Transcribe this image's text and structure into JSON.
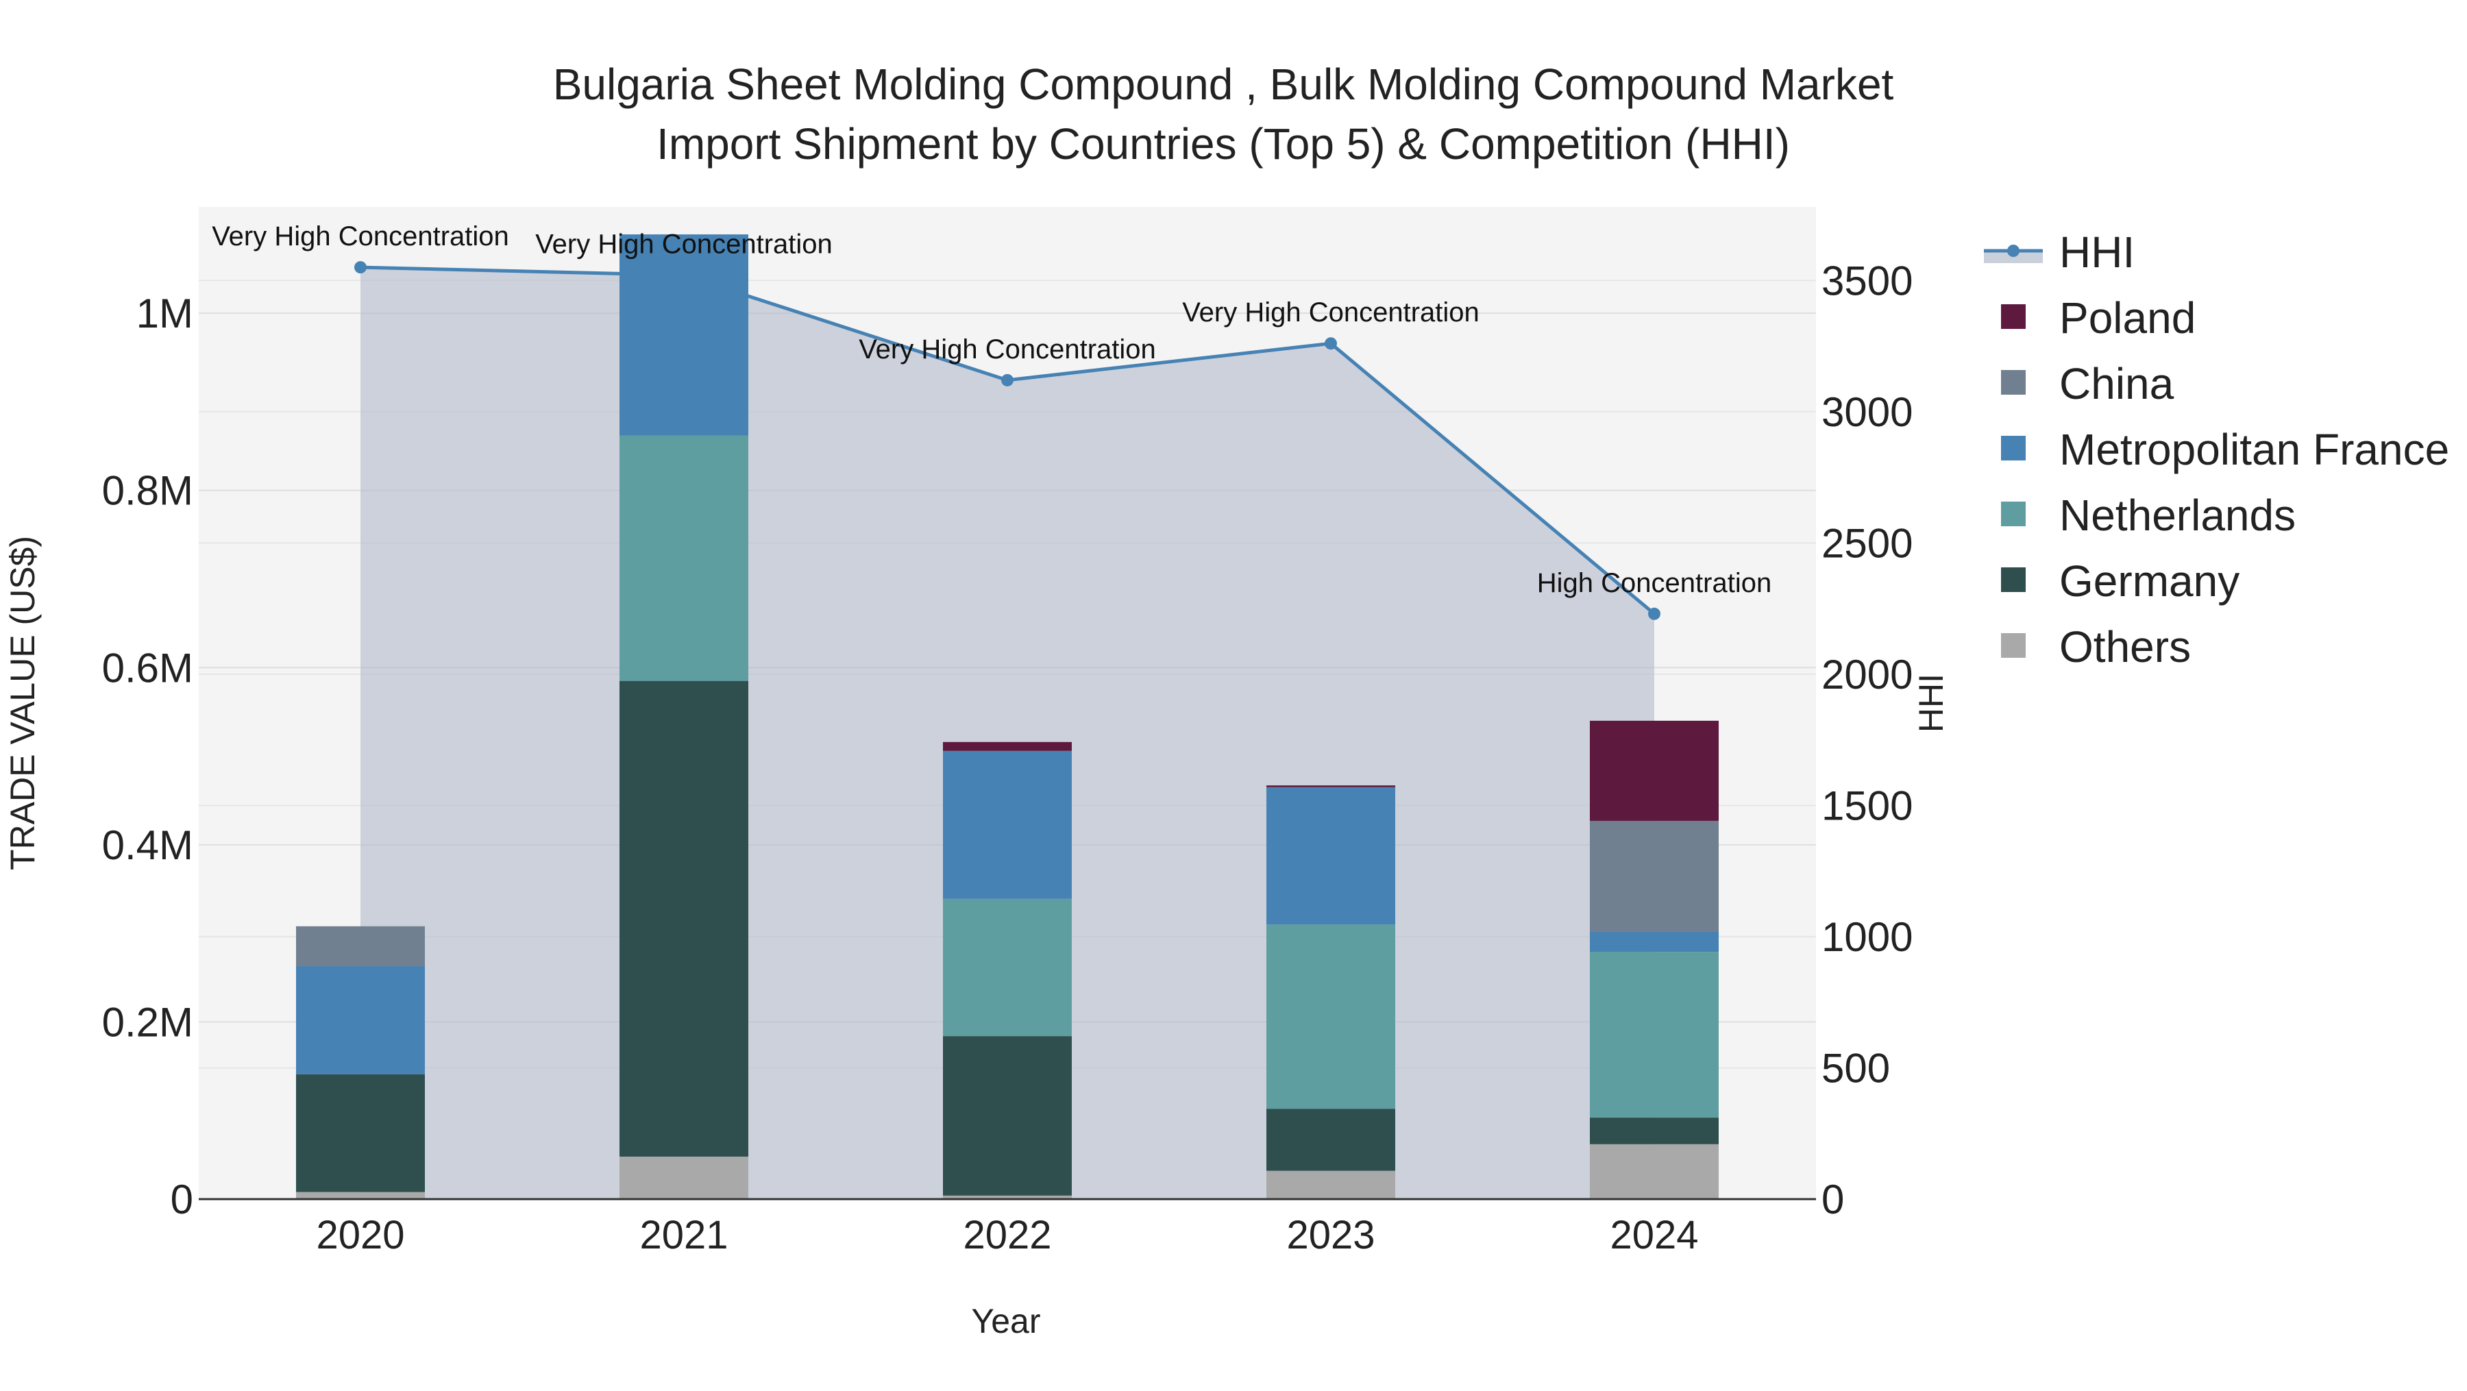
{
  "chart_data": {
    "type": "bar",
    "title_line1": "Bulgaria Sheet Molding Compound , Bulk Molding Compound Market",
    "title_line2": "Import Shipment by Countries (Top 5) & Competition (HHI)",
    "xlabel": "Year",
    "ylabel": "TRADE VALUE (US$)",
    "y2label": "HHI",
    "categories": [
      "2020",
      "2021",
      "2022",
      "2023",
      "2024"
    ],
    "ylim": [
      0,
      1120000
    ],
    "y2lim": [
      0,
      3780
    ],
    "y_ticks": [
      0,
      200000,
      400000,
      600000,
      800000,
      1000000
    ],
    "y_tick_labels": [
      "0",
      "0.2M",
      "0.4M",
      "0.6M",
      "0.8M",
      "1M"
    ],
    "y2_ticks": [
      0,
      500,
      1000,
      1500,
      2000,
      2500,
      3000,
      3500
    ],
    "y2_tick_labels": [
      "0",
      "500",
      "1000",
      "1500",
      "2000",
      "2500",
      "3000",
      "3500"
    ],
    "series": [
      {
        "name": "Others",
        "color": "#A9A9A9",
        "values": [
          8000,
          48000,
          4000,
          32000,
          62000
        ]
      },
      {
        "name": "Germany",
        "color": "#2F4F4F",
        "values": [
          133000,
          537000,
          180000,
          70000,
          30000
        ]
      },
      {
        "name": "Netherlands",
        "color": "#5F9EA0",
        "values": [
          0,
          277000,
          155000,
          208000,
          187000
        ]
      },
      {
        "name": "Metropolitan France",
        "color": "#4682B4",
        "values": [
          122000,
          227000,
          167000,
          155000,
          23000
        ]
      },
      {
        "name": "China",
        "color": "#708090",
        "values": [
          45000,
          0,
          0,
          0,
          125000
        ]
      },
      {
        "name": "Poland",
        "color": "#5E1A3E",
        "values": [
          0,
          0,
          10000,
          2000,
          113000
        ]
      }
    ],
    "hhi": {
      "name": "HHI",
      "color": "#4682B4",
      "values": [
        3550,
        3520,
        3120,
        3260,
        2230
      ],
      "labels": [
        "Very High Concentration",
        "Very High Concentration",
        "Very High Concentration",
        "Very High Concentration",
        "High Concentration"
      ]
    },
    "legend": [
      "HHI",
      "Poland",
      "China",
      "Metropolitan France",
      "Netherlands",
      "Germany",
      "Others"
    ]
  }
}
